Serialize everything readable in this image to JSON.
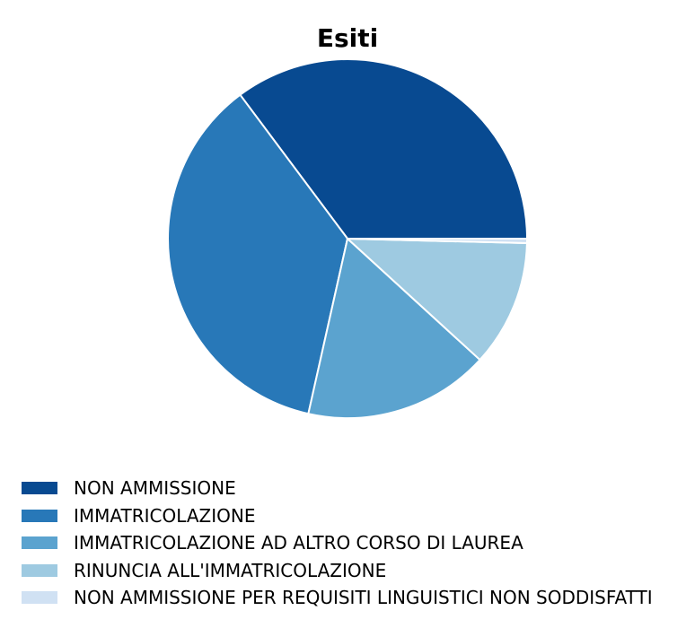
{
  "chart_data": {
    "type": "pie",
    "title": "Esiti",
    "categories": [
      "NON AMMISSIONE",
      "IMMATRICOLAZIONE",
      "IMMATRICOLAZIONE AD ALTRO CORSO DI LAUREA",
      "RINUNCIA ALL'IMMATRICOLAZIONE",
      "NON AMMISSIONE PER REQUISITI LINGUISTICI NON SODDISFATTI"
    ],
    "values": [
      35.2,
      36.3,
      16.7,
      11.4,
      0.4
    ],
    "colors": [
      "#084a91",
      "#2878b8",
      "#5ba3cf",
      "#9ecae1",
      "#d0e1f3"
    ],
    "start_angle_deg": 0,
    "direction": "counterclockwise",
    "wedge_edge_color": "#ffffff",
    "legend_position": "bottom-left"
  }
}
